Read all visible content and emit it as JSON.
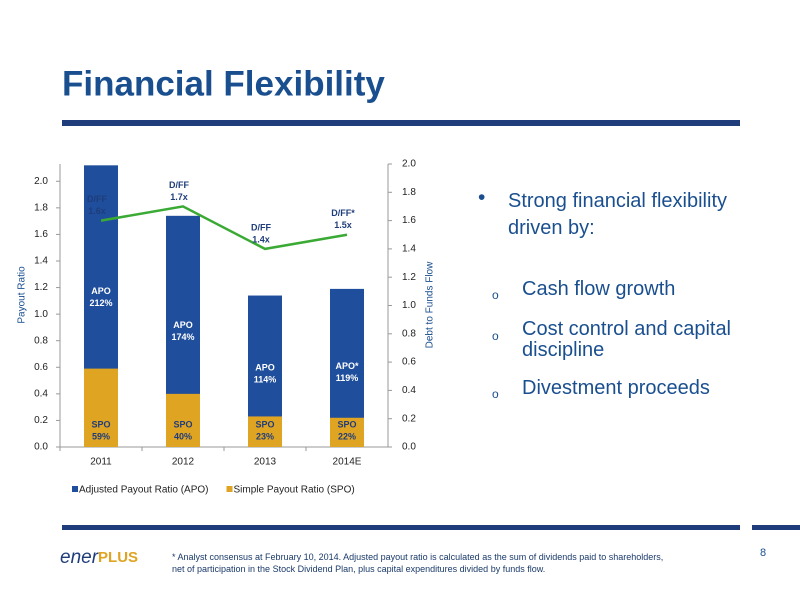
{
  "header": {
    "title": "Financial Flexibility"
  },
  "chart_data": {
    "type": "bar",
    "categories": [
      "2011",
      "2012",
      "2013",
      "2014E"
    ],
    "y_label": "Payout Ratio",
    "y2_label": "Debt to Funds Flow",
    "ylim": [
      0,
      2.13
    ],
    "yticks": [
      {
        "value": 0,
        "label": "0.0"
      },
      {
        "value": 0.2,
        "label": "0.2"
      },
      {
        "value": 0.4,
        "label": "0.4"
      },
      {
        "value": 0.6,
        "label": "0.6"
      },
      {
        "value": 0.8,
        "label": "0.8"
      },
      {
        "value": 1.0,
        "label": "1.0"
      },
      {
        "value": 1.2,
        "label": "1.2"
      },
      {
        "value": 1.4,
        "label": "1.4"
      },
      {
        "value": 1.6,
        "label": "1.6"
      },
      {
        "value": 1.8,
        "label": "1.8"
      },
      {
        "value": 2.0,
        "label": "2.0"
      }
    ],
    "y2lim": [
      0,
      2.0
    ],
    "y2ticks": [
      {
        "value": 0,
        "label": "0.0"
      },
      {
        "value": 0.2,
        "label": "0.2"
      },
      {
        "value": 0.4,
        "label": "0.4"
      },
      {
        "value": 0.6,
        "label": "0.6"
      },
      {
        "value": 0.8,
        "label": "0.8"
      },
      {
        "value": 1.0,
        "label": "1.0"
      },
      {
        "value": 1.2,
        "label": "1.2"
      },
      {
        "value": 1.4,
        "label": "1.4"
      },
      {
        "value": 1.6,
        "label": "1.6"
      },
      {
        "value": 1.8,
        "label": "1.8"
      },
      {
        "value": 2.0,
        "label": "2.0"
      }
    ],
    "series": [
      {
        "name": "Adjusted Payout Ratio (APO)",
        "type": "bar",
        "color": "#1f4e9c",
        "values": [
          2.12,
          1.74,
          1.14,
          1.19
        ],
        "value_labels": [
          "212%",
          "174%",
          "114%",
          "119%"
        ],
        "short_labels": [
          "APO",
          "APO",
          "APO",
          "APO*"
        ]
      },
      {
        "name": "Simple Payout Ratio (SPO)",
        "type": "bar",
        "color": "#e0a423",
        "values": [
          0.59,
          0.4,
          0.23,
          0.22
        ],
        "value_labels": [
          "59%",
          "40%",
          "23%",
          "22%"
        ],
        "short_labels": [
          "SPO",
          "SPO",
          "SPO",
          "SPO"
        ]
      },
      {
        "type": "line",
        "axis": "y2",
        "color": "#3aaa35",
        "values": [
          1.6,
          1.7,
          1.4,
          1.5
        ],
        "value_labels": [
          "1.6x",
          "1.7x",
          "1.4x",
          "1.5x"
        ],
        "short_labels": [
          "D/FF",
          "D/FF",
          "D/FF",
          "D/FF*"
        ]
      }
    ],
    "legend": "bottom-left"
  },
  "bullets": {
    "main": "Strong financial flexibility driven by:",
    "sub": [
      "Cash flow growth",
      "Cost control and capital discipline",
      "Divestment proceeds"
    ]
  },
  "footer": {
    "logo": [
      "ener",
      "PLUS"
    ],
    "footnote": "* Analyst consensus at February 10, 2014.  Adjusted payout ratio is calculated as the sum of dividends paid to shareholders, net of participation in the Stock Dividend Plan, plus capital expenditures divided by funds flow.",
    "page": "8"
  }
}
